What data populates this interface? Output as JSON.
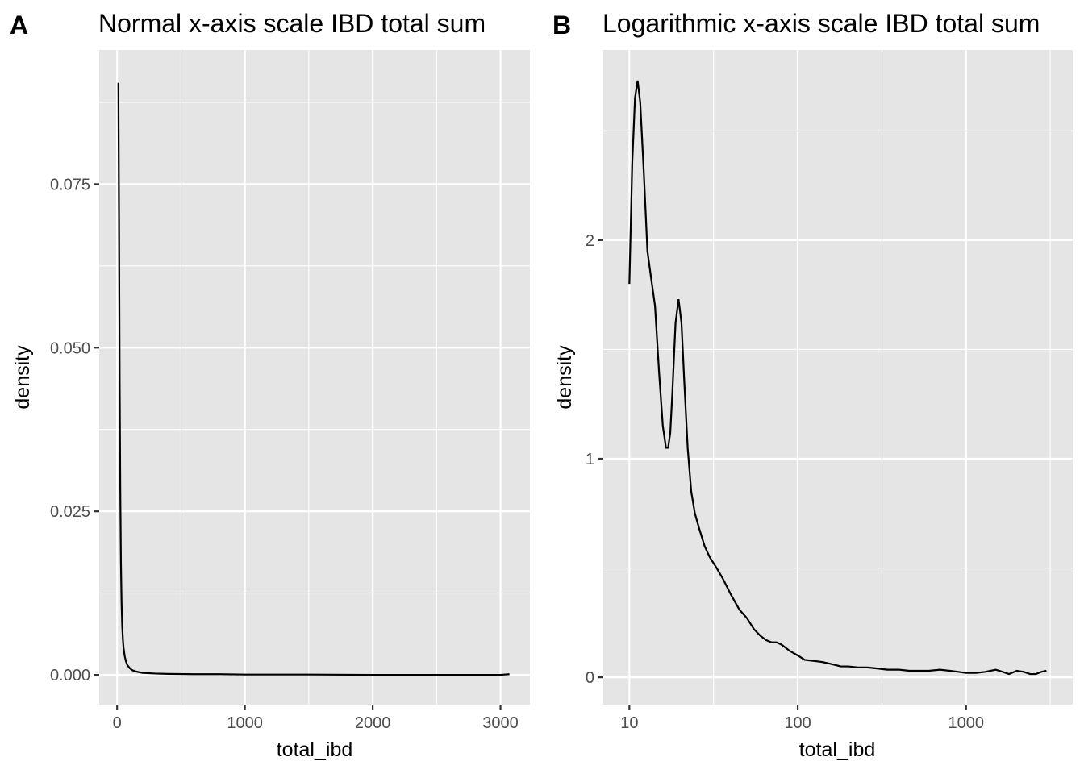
{
  "chart_data": [
    {
      "type": "line",
      "tag": "A",
      "title": "Normal x-axis scale IBD total sum",
      "xlabel": "total_ibd",
      "ylabel": "density",
      "x_scale": "linear",
      "xlim": [
        -140,
        3230
      ],
      "ylim": [
        -0.00455,
        0.0955
      ],
      "x_major_ticks": [
        0,
        1000,
        2000,
        3000
      ],
      "x_tick_labels": [
        "0",
        "1000",
        "2000",
        "3000"
      ],
      "x_minor_ticks": [
        500,
        1500,
        2500
      ],
      "y_major_ticks": [
        0,
        0.025,
        0.05,
        0.075
      ],
      "y_tick_labels": [
        "0.000",
        "0.025",
        "0.050",
        "0.075"
      ],
      "y_minor_ticks": [
        0.0125,
        0.0375,
        0.0625,
        0.0875
      ],
      "grid": true,
      "series": [
        {
          "x": [
            10,
            15,
            20,
            25,
            30,
            35,
            40,
            45,
            50,
            60,
            70,
            80,
            100,
            120,
            150,
            200,
            300,
            400,
            600,
            800,
            1000,
            1500,
            2000,
            2500,
            3000,
            3070
          ],
          "y": [
            0.0905,
            0.07,
            0.045,
            0.028,
            0.017,
            0.011,
            0.0075,
            0.0055,
            0.0042,
            0.0028,
            0.002,
            0.0015,
            0.001,
            0.0007,
            0.0005,
            0.0003,
            0.0002,
            0.00015,
            0.0001,
            0.0001,
            5e-05,
            5e-05,
            0.0,
            0.0,
            0.0,
            0.0001
          ]
        }
      ]
    },
    {
      "type": "line",
      "tag": "B",
      "title": "Logarithmic x-axis scale IBD total sum",
      "xlabel": "total_ibd",
      "ylabel": "density",
      "x_scale": "log10",
      "xlim": [
        7.0,
        4300
      ],
      "ylim": [
        -0.125,
        2.87
      ],
      "x_major_ticks": [
        10,
        100,
        1000
      ],
      "x_tick_labels": [
        "10",
        "100",
        "1000"
      ],
      "x_minor_ticks": [
        31.62,
        316.2,
        3162
      ],
      "y_major_ticks": [
        0,
        1,
        2
      ],
      "y_tick_labels": [
        "0",
        "1",
        "2"
      ],
      "y_minor_ticks": [
        0.5,
        1.5,
        2.5
      ],
      "grid": true,
      "series": [
        {
          "x": [
            10,
            10.4,
            10.8,
            11.2,
            11.6,
            12.2,
            12.8,
            13.5,
            14.2,
            15.0,
            15.8,
            16.5,
            17.0,
            17.5,
            18.0,
            18.8,
            19.6,
            20.4,
            21.2,
            22.2,
            23.3,
            24.5,
            26,
            28,
            30,
            33,
            36,
            40,
            45,
            50,
            55,
            60,
            65,
            70,
            75,
            80,
            90,
            100,
            110,
            125,
            140,
            160,
            180,
            200,
            230,
            260,
            300,
            340,
            400,
            460,
            520,
            600,
            700,
            800,
            900,
            1000,
            1150,
            1300,
            1500,
            1650,
            1800,
            2000,
            2200,
            2400,
            2600,
            2800,
            3000
          ],
          "y": [
            1.8,
            2.35,
            2.65,
            2.73,
            2.63,
            2.3,
            1.95,
            1.82,
            1.7,
            1.4,
            1.15,
            1.05,
            1.05,
            1.12,
            1.3,
            1.62,
            1.73,
            1.62,
            1.35,
            1.05,
            0.85,
            0.75,
            0.68,
            0.6,
            0.55,
            0.5,
            0.45,
            0.38,
            0.31,
            0.27,
            0.22,
            0.19,
            0.17,
            0.16,
            0.16,
            0.15,
            0.12,
            0.1,
            0.08,
            0.075,
            0.07,
            0.06,
            0.05,
            0.05,
            0.045,
            0.045,
            0.04,
            0.035,
            0.035,
            0.03,
            0.03,
            0.03,
            0.035,
            0.03,
            0.025,
            0.02,
            0.02,
            0.025,
            0.035,
            0.025,
            0.015,
            0.03,
            0.025,
            0.015,
            0.015,
            0.025,
            0.03
          ]
        }
      ]
    }
  ]
}
